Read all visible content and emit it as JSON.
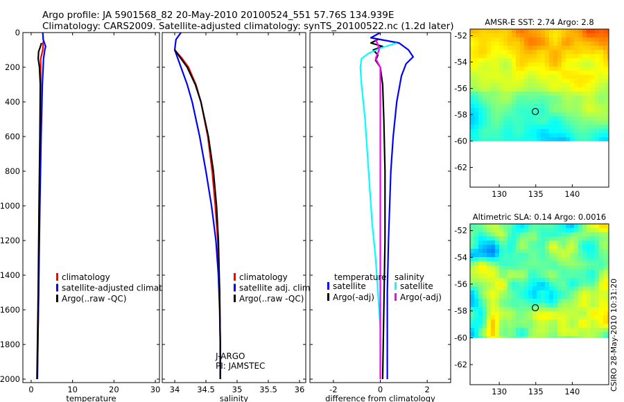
{
  "title_line1": "Argo profile: JA 5901568_82 20-May-2010 20100524_551 57.76S 134.939E",
  "title_line2": "Climatology: CARS2009. Satellite-adjusted climatology: synTS_20100522.nc (1.2d later)",
  "side_note": "CSIRO 28-May-2010 10:31:20",
  "colors": {
    "red": "#ff0000",
    "blue": "#0000ff",
    "black": "#000000",
    "cyan": "#00ffff",
    "magenta": "#ff00ff"
  },
  "chart_data": [
    {
      "type": "line",
      "id": "temperature",
      "xlabel": "temperature",
      "xlim": [
        -2,
        31
      ],
      "ylim": [
        0,
        2020
      ],
      "y_reversed": true,
      "xticks": [
        0,
        10,
        20,
        30
      ],
      "xtick_labels": [
        "0",
        "10",
        "20",
        "30"
      ],
      "yticks": [
        0,
        200,
        400,
        600,
        800,
        1000,
        1200,
        1400,
        1600,
        1800,
        2000
      ],
      "ytick_labels": [
        "0",
        "200",
        "400",
        "600",
        "800",
        "1000",
        "1200",
        "1400",
        "1600",
        "1800",
        "2000"
      ],
      "legend": {
        "placement": "lower-middle",
        "entries": [
          {
            "label": "climatology",
            "color": "red"
          },
          {
            "label": "satellite-adjusted climatolo",
            "color": "blue"
          },
          {
            "label": "Argo(..raw -QC)",
            "color": "black"
          }
        ]
      },
      "series": [
        {
          "name": "climatology",
          "color": "red",
          "depth": [
            50,
            100,
            150,
            300,
            600,
            1000,
            1500,
            2000
          ],
          "values": [
            2.9,
            2.8,
            2.3,
            2.3,
            2.2,
            2.0,
            1.8,
            1.5
          ]
        },
        {
          "name": "satellite-adjusted",
          "color": "blue",
          "depth": [
            0,
            40,
            80,
            100,
            150,
            300,
            600,
            1000,
            1500,
            2000
          ],
          "values": [
            2.8,
            2.9,
            3.5,
            3.3,
            3.0,
            2.7,
            2.4,
            2.1,
            1.8,
            1.5
          ]
        },
        {
          "name": "Argo",
          "color": "black",
          "depth": [
            60,
            90,
            110,
            150,
            200,
            300,
            600,
            1000,
            1500,
            2000
          ],
          "values": [
            2.5,
            2.1,
            1.8,
            1.7,
            2.0,
            2.2,
            2.1,
            1.9,
            1.7,
            1.4
          ]
        }
      ]
    },
    {
      "type": "line",
      "id": "salinity",
      "xlabel": "salinity",
      "xlim": [
        33.8,
        36.1
      ],
      "ylim": [
        0,
        2020
      ],
      "y_reversed": true,
      "xticks": [
        34,
        34.5,
        35,
        35.5,
        36
      ],
      "xtick_labels": [
        "34",
        "34.5",
        "35",
        "35.5",
        "36"
      ],
      "legend": {
        "placement": "lower-middle",
        "entries": [
          {
            "label": "climatology",
            "color": "red"
          },
          {
            "label": "satellite adj. clim.",
            "color": "blue"
          },
          {
            "label": "Argo(..raw -QC)",
            "color": "black"
          }
        ]
      },
      "annotations": [
        "J-ARGO",
        "PI: JAMSTEC"
      ],
      "series": [
        {
          "name": "climatology",
          "color": "red",
          "depth": [
            100,
            150,
            200,
            300,
            400,
            600,
            800,
            1000,
            1200,
            1500,
            1800,
            2000
          ],
          "values": [
            34.0,
            34.12,
            34.22,
            34.34,
            34.42,
            34.53,
            34.6,
            34.65,
            34.69,
            34.72,
            34.73,
            34.73
          ]
        },
        {
          "name": "satellite adj. clim.",
          "color": "blue",
          "depth": [
            0,
            40,
            100,
            150,
            200,
            300,
            400,
            600,
            800,
            1000,
            1200,
            1400,
            1600,
            1800,
            2000
          ],
          "values": [
            34.1,
            34.02,
            34.0,
            34.05,
            34.1,
            34.2,
            34.28,
            34.4,
            34.5,
            34.59,
            34.66,
            34.7,
            34.72,
            34.73,
            34.73
          ]
        },
        {
          "name": "Argo",
          "color": "black",
          "depth": [
            100,
            150,
            200,
            300,
            400,
            600,
            800,
            1000,
            1200,
            1500,
            1800,
            2000
          ],
          "values": [
            34.0,
            34.1,
            34.2,
            34.33,
            34.42,
            34.54,
            34.62,
            34.67,
            34.7,
            34.72,
            34.73,
            34.73
          ]
        }
      ]
    },
    {
      "type": "line",
      "id": "difference",
      "xlabel": "difference from climatology",
      "xlim": [
        -3,
        3
      ],
      "ylim": [
        0,
        2020
      ],
      "y_reversed": true,
      "xticks": [
        -2,
        0,
        2
      ],
      "xtick_labels": [
        "-2",
        "0",
        "2"
      ],
      "legend": {
        "placement": "lower-middle",
        "column_titles": [
          "temperature",
          "salinity"
        ],
        "entries": [
          {
            "label": "satellite",
            "color": "blue",
            "column": 0
          },
          {
            "label": "Argo(-adj)",
            "color": "black",
            "column": 0
          },
          {
            "label": "satellite",
            "color": "cyan",
            "column": 1
          },
          {
            "label": "Argo(-adj)",
            "color": "magenta",
            "column": 1
          }
        ]
      },
      "series": [
        {
          "name": "temperature satellite",
          "color": "blue",
          "depth": [
            0,
            30,
            60,
            100,
            140,
            180,
            250,
            400,
            600,
            800,
            1000,
            1200,
            1500,
            1800,
            2000
          ],
          "values": [
            0.0,
            -0.4,
            0.8,
            1.2,
            1.4,
            1.1,
            0.9,
            0.7,
            0.55,
            0.45,
            0.4,
            0.35,
            0.3,
            0.3,
            0.3
          ]
        },
        {
          "name": "temperature Argo(-adj)",
          "color": "black",
          "depth": [
            40,
            60,
            80,
            100,
            130,
            160,
            200,
            300,
            500,
            800,
            1200,
            1600,
            2000
          ],
          "values": [
            -0.1,
            -0.4,
            0.1,
            -0.3,
            -0.1,
            -0.2,
            0.0,
            0.1,
            0.15,
            0.2,
            0.2,
            0.15,
            0.1
          ]
        },
        {
          "name": "salinity satellite",
          "color": "cyan",
          "depth": [
            60,
            90,
            120,
            150,
            200,
            300,
            500,
            800,
            1100,
            1300,
            1500,
            1700,
            2000
          ],
          "values": [
            0.7,
            0.0,
            -0.5,
            -0.8,
            -0.85,
            -0.8,
            -0.65,
            -0.5,
            -0.35,
            -0.2,
            -0.1,
            0.0,
            0.0
          ]
        },
        {
          "name": "salinity Argo(-adj)",
          "color": "magenta",
          "depth": [
            40,
            70,
            100,
            150,
            200,
            400,
            700,
            1000,
            1400,
            1700,
            2000
          ],
          "values": [
            -0.2,
            -0.1,
            -0.05,
            -0.2,
            0.0,
            0.0,
            0.0,
            0.0,
            0.0,
            0.0,
            0.0
          ]
        }
      ]
    },
    {
      "type": "heatmap",
      "id": "sst_map",
      "title": "AMSR-E SST: 2.74 Argo: 2.8",
      "xlim": [
        126,
        145
      ],
      "ylim": [
        -63.5,
        -51.5
      ],
      "data_extent_lat": [
        -60,
        -51.5
      ],
      "xticks": [
        130,
        135,
        140
      ],
      "xtick_labels": [
        "130",
        "135",
        "140"
      ],
      "yticks": [
        -52,
        -54,
        -56,
        -58,
        -60,
        -62
      ],
      "ytick_labels": [
        "-52",
        "-54",
        "-56",
        "-58",
        "-60",
        "-62"
      ],
      "marker": {
        "lon": 134.939,
        "lat": -57.76
      }
    },
    {
      "type": "heatmap",
      "id": "sla_map",
      "title": "Altimetric SLA: 0.14 Argo: 0.0016",
      "xlim": [
        126,
        145
      ],
      "ylim": [
        -63.5,
        -51.5
      ],
      "data_extent_lat": [
        -60,
        -51.5
      ],
      "xticks": [
        130,
        135,
        140
      ],
      "xtick_labels": [
        "130",
        "135",
        "140"
      ],
      "yticks": [
        -52,
        -54,
        -56,
        -58,
        -60,
        -62
      ],
      "ytick_labels": [
        "-52",
        "-54",
        "-56",
        "-58",
        "-60",
        "-62"
      ],
      "marker": {
        "lon": 134.939,
        "lat": -57.76
      }
    }
  ]
}
